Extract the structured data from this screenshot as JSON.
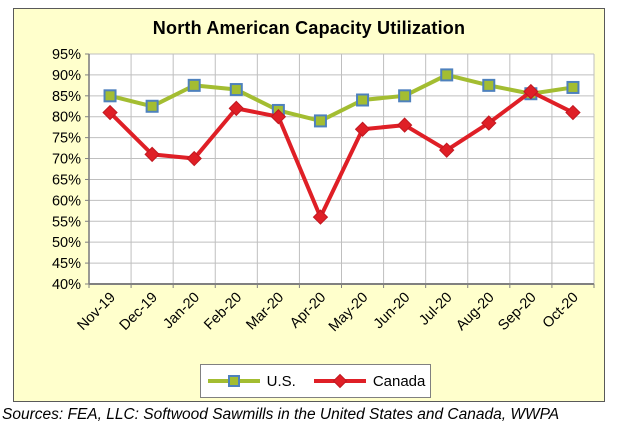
{
  "chart": {
    "colors": {
      "chart_background": "#FFFFCC",
      "chart_border": "#595959",
      "plot_background": "#FFFFFF",
      "gridline": "#BFBFBF",
      "axis": "#808080",
      "text": "#000000"
    }
  },
  "chart_data": {
    "type": "line",
    "title": "North American Capacity Utilization",
    "categories": [
      "Nov-19",
      "Dec-19",
      "Jan-20",
      "Feb-20",
      "Mar-20",
      "Apr-20",
      "May-20",
      "Jun-20",
      "Jul-20",
      "Aug-20",
      "Sep-20",
      "Oct-20"
    ],
    "series": [
      {
        "name": "U.S.",
        "color": "#A3BD31",
        "marker": "square",
        "marker_border": "#4E81BD",
        "values": [
          85,
          82.5,
          87.5,
          86.5,
          81.5,
          79,
          84,
          85,
          90,
          87.5,
          85.5,
          87
        ]
      },
      {
        "name": "Canada",
        "color": "#DF1F26",
        "marker": "diamond",
        "marker_border": "#C01820",
        "values": [
          81,
          71,
          70,
          82,
          80,
          56,
          77,
          78,
          72,
          78.5,
          86,
          81
        ]
      }
    ],
    "ylim": [
      40,
      95
    ],
    "ytick_step": 5,
    "ytick_suffix": "%",
    "grid": true,
    "legend_position": "bottom"
  },
  "legend": {
    "us_label": "U.S.",
    "canada_label": "Canada"
  },
  "footer": {
    "text": "Sources: FEA, LLC: Softwood Sawmills in the United States and Canada, WWPA"
  }
}
